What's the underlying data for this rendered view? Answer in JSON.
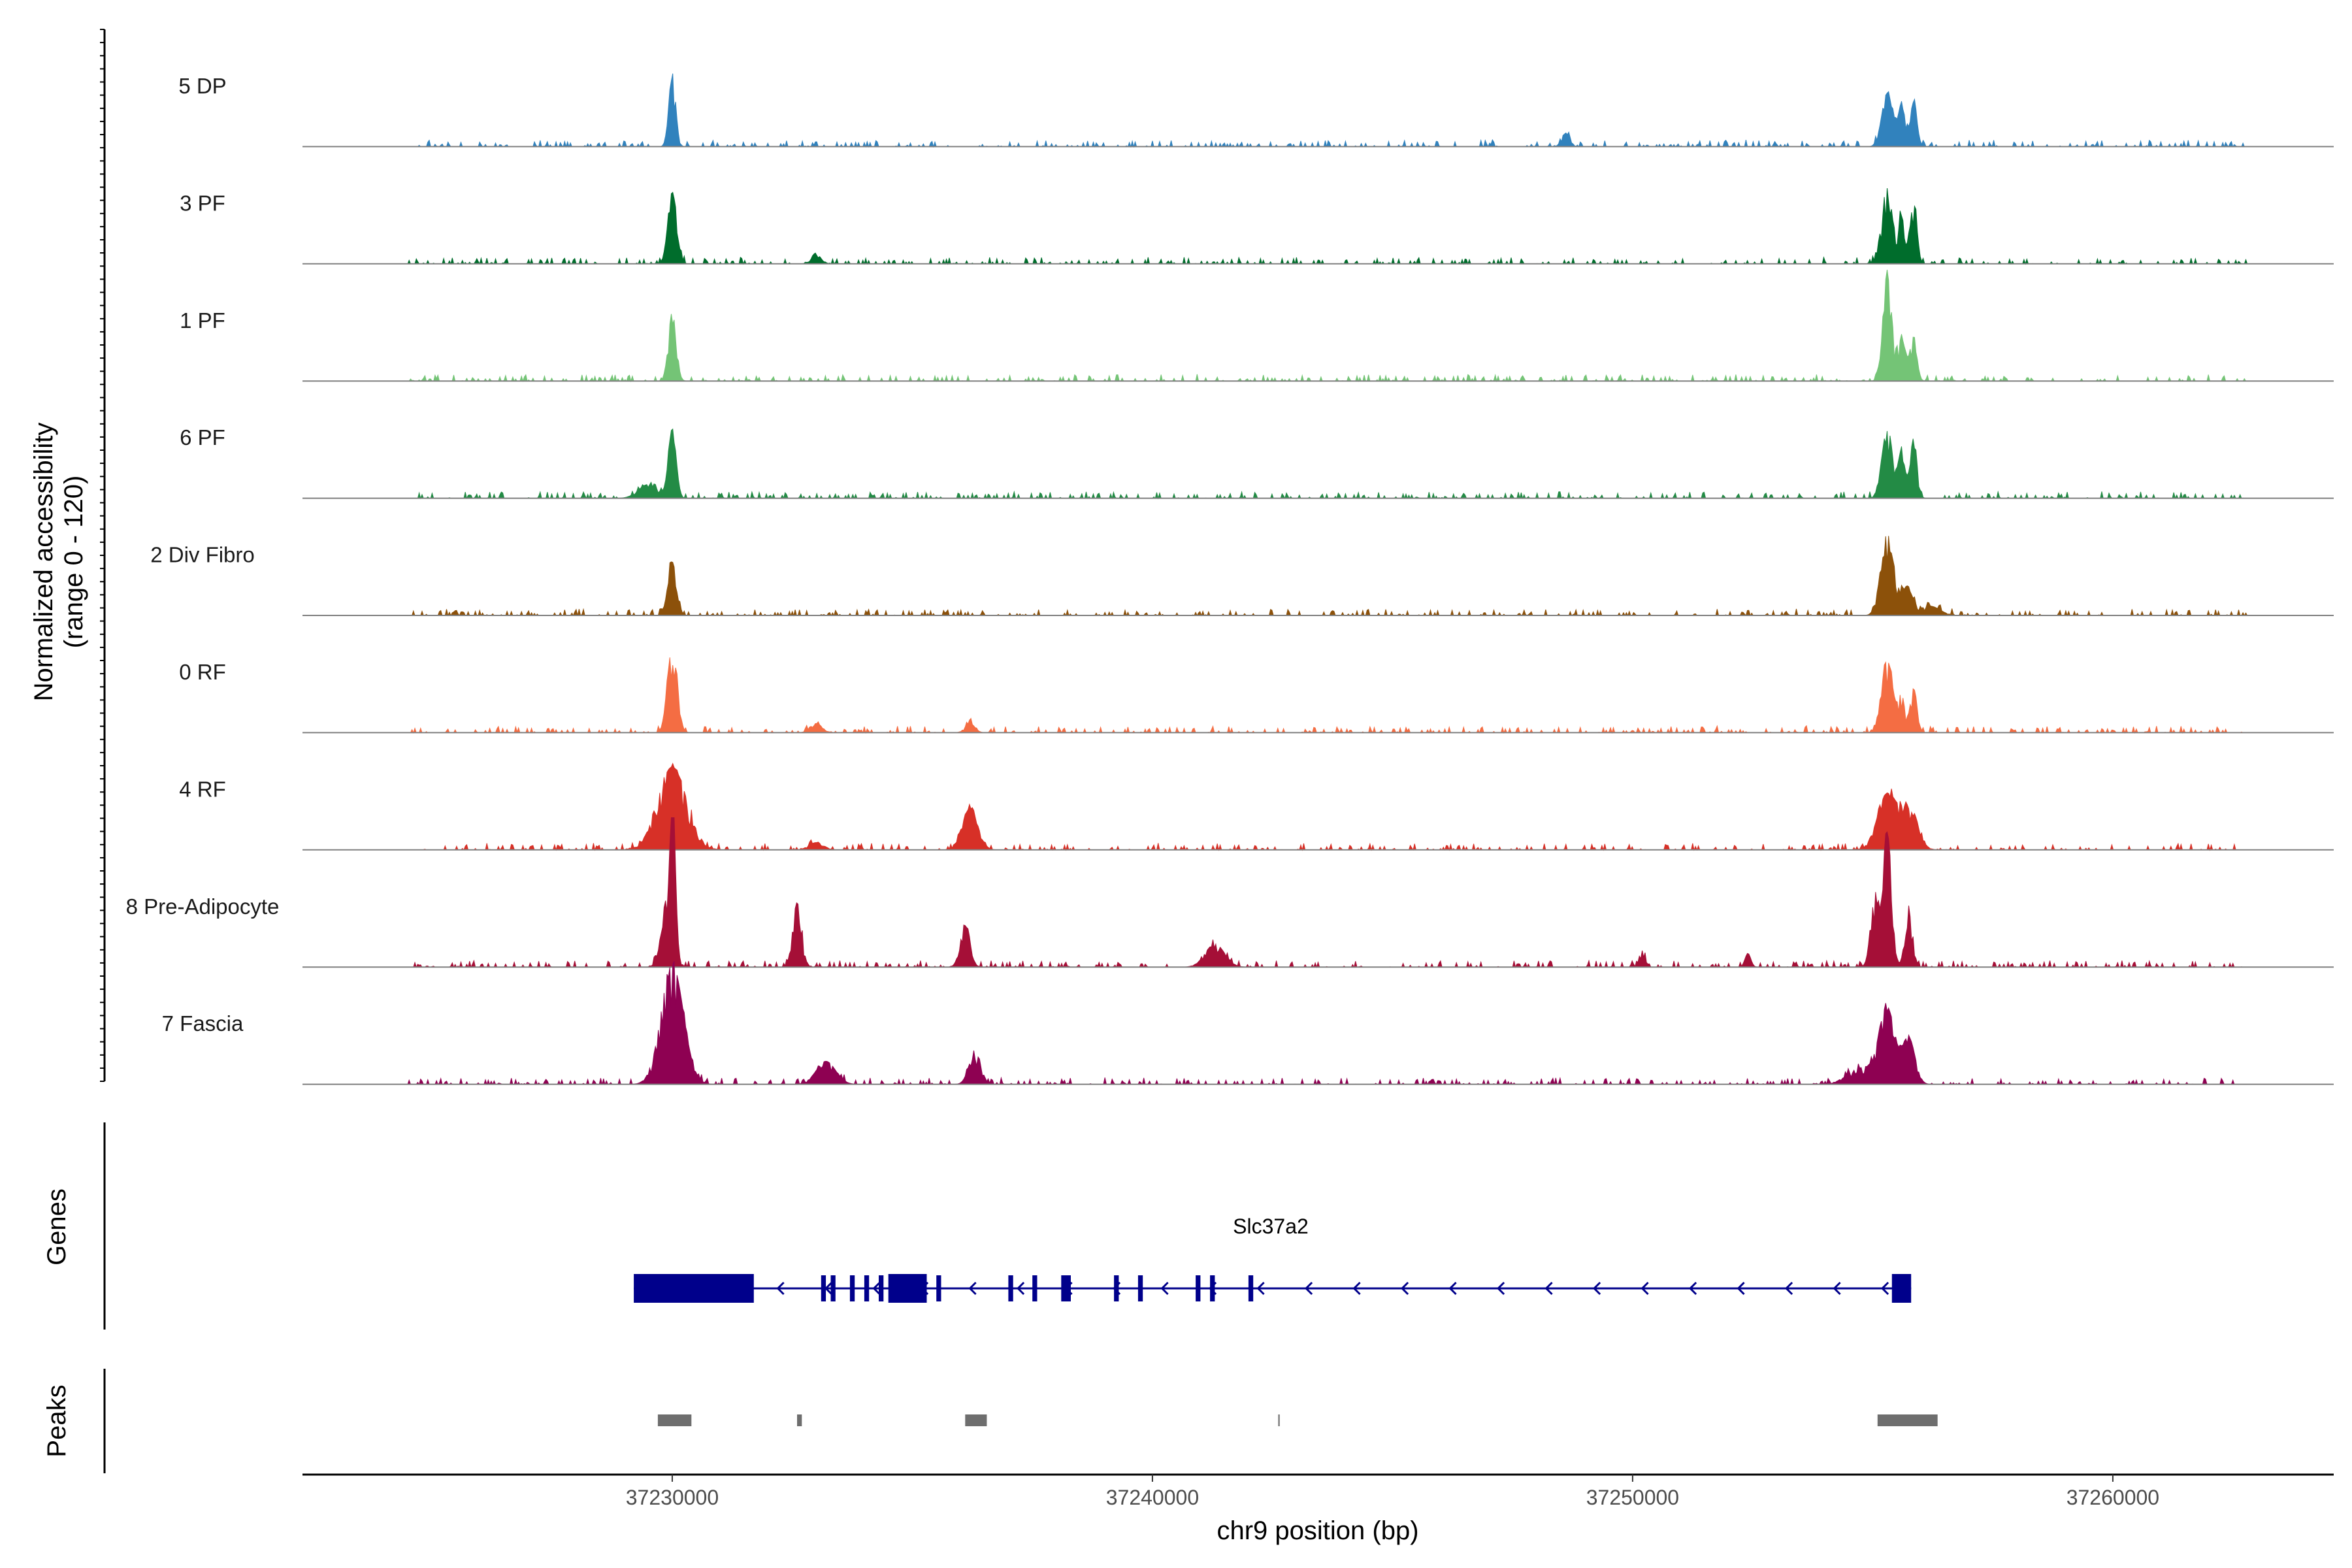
{
  "chart_data": {
    "type": "area",
    "title": "",
    "chromosome": "chr9",
    "xlabel": "chr9 position (bp)",
    "ylabel_line1": "Normalized accessibility",
    "ylabel_line2": "(range 0 - 120)",
    "yrange": [
      0,
      120
    ],
    "xlim": [
      37222300,
      37264600
    ],
    "x_ticks": [
      37230000,
      37240000,
      37250000,
      37260000
    ],
    "x_tick_labels": [
      "37230000",
      "37240000",
      "37250000",
      "37260000"
    ],
    "panel_labels": {
      "genes": "Genes",
      "peaks": "Peaks"
    },
    "series": [
      {
        "name": "5 DP",
        "color": "#3182BD",
        "peaks": [
          [
            37230000,
            80,
            70
          ],
          [
            37255300,
            58,
            110
          ],
          [
            37255600,
            45,
            70
          ],
          [
            37255850,
            48,
            70
          ],
          [
            37248600,
            15,
            80
          ]
        ]
      },
      {
        "name": "3 PF",
        "color": "#006D2C",
        "peaks": [
          [
            37230000,
            78,
            90
          ],
          [
            37255300,
            82,
            110
          ],
          [
            37255600,
            50,
            70
          ],
          [
            37255850,
            65,
            70
          ],
          [
            37233000,
            12,
            100
          ]
        ]
      },
      {
        "name": "1 PF",
        "color": "#74C476",
        "peaks": [
          [
            37230000,
            75,
            80
          ],
          [
            37255300,
            115,
            90
          ],
          [
            37255600,
            45,
            90
          ],
          [
            37255850,
            45,
            70
          ]
        ]
      },
      {
        "name": "6 PF",
        "color": "#238B45",
        "peaks": [
          [
            37230000,
            75,
            80
          ],
          [
            37255300,
            75,
            110
          ],
          [
            37255600,
            50,
            70
          ],
          [
            37255850,
            65,
            70
          ],
          [
            37229500,
            15,
            200
          ]
        ]
      },
      {
        "name": "2 Div Fibro",
        "color": "#8C510A",
        "peaks": [
          [
            37230000,
            58,
            90
          ],
          [
            37255300,
            88,
            130
          ],
          [
            37255700,
            30,
            130
          ],
          [
            37256200,
            10,
            200
          ]
        ]
      },
      {
        "name": "0 RF",
        "color": "#F46D43",
        "peaks": [
          [
            37230000,
            90,
            100
          ],
          [
            37255300,
            78,
            120
          ],
          [
            37255600,
            38,
            70
          ],
          [
            37255850,
            48,
            70
          ],
          [
            37233000,
            10,
            120
          ],
          [
            37236200,
            10,
            100
          ]
        ]
      },
      {
        "name": "4 RF",
        "color": "#D73027",
        "peaks": [
          [
            37230000,
            90,
            300
          ],
          [
            37236200,
            45,
            160
          ],
          [
            37255300,
            60,
            200
          ],
          [
            37255750,
            40,
            180
          ],
          [
            37233000,
            8,
            150
          ]
        ]
      },
      {
        "name": "8 Pre-Adipocyte",
        "color": "#A50F37",
        "peaks": [
          [
            37230000,
            160,
            60
          ],
          [
            37229900,
            65,
            120
          ],
          [
            37232600,
            70,
            90
          ],
          [
            37236100,
            45,
            100
          ],
          [
            37241300,
            25,
            200
          ],
          [
            37255300,
            145,
            90
          ],
          [
            37255050,
            75,
            90
          ],
          [
            37255750,
            55,
            80
          ],
          [
            37250200,
            15,
            60
          ],
          [
            37252400,
            15,
            60
          ]
        ]
      },
      {
        "name": "7 Fascia",
        "color": "#8E0152",
        "peaks": [
          [
            37230000,
            130,
            230
          ],
          [
            37233200,
            25,
            200
          ],
          [
            37236300,
            35,
            120
          ],
          [
            37255300,
            80,
            160
          ],
          [
            37255750,
            50,
            130
          ],
          [
            37254800,
            18,
            300
          ]
        ]
      }
    ],
    "gene": {
      "name": "Slc37a2",
      "strand": "-",
      "start": 37229200,
      "end": 37255800,
      "color": "#00008B",
      "exons": [
        [
          37229200,
          37231700
        ],
        [
          37233100,
          37233200
        ],
        [
          37233300,
          37233400
        ],
        [
          37233700,
          37233800
        ],
        [
          37234000,
          37234100
        ],
        [
          37234300,
          37234400
        ],
        [
          37234500,
          37235300
        ],
        [
          37235500,
          37235600
        ],
        [
          37237000,
          37237100
        ],
        [
          37237500,
          37237600
        ],
        [
          37238100,
          37238300
        ],
        [
          37239200,
          37239300
        ],
        [
          37239700,
          37239800
        ],
        [
          37240900,
          37241000
        ],
        [
          37241200,
          37241300
        ],
        [
          37242000,
          37242100
        ],
        [
          37255400,
          37255800
        ]
      ]
    },
    "peaks": [
      [
        37229700,
        37230400
      ],
      [
        37232600,
        37232700
      ],
      [
        37236100,
        37236550
      ],
      [
        37242620,
        37242650
      ],
      [
        37255100,
        37256350
      ]
    ]
  }
}
